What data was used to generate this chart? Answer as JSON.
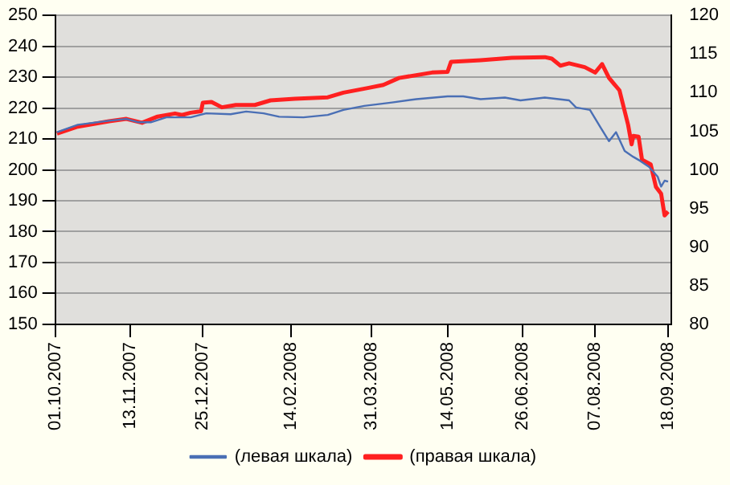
{
  "chart_data": {
    "type": "line",
    "legend": "bottom",
    "grid": "y",
    "marker": "none",
    "line_style": "solid",
    "xlim": [
      "2007-10-01",
      "2008-09-20"
    ],
    "xticks": [
      {
        "value": "2007-10-01",
        "label": "01.10.2007"
      },
      {
        "value": "2007-11-13",
        "label": "13.11.2007"
      },
      {
        "value": "2007-12-25",
        "label": "25.12.2007"
      },
      {
        "value": "2008-02-14",
        "label": "14.02.2008"
      },
      {
        "value": "2008-03-31",
        "label": "31.03.2008"
      },
      {
        "value": "2008-05-14",
        "label": "14.05.2008"
      },
      {
        "value": "2008-06-26",
        "label": "26.06.2008"
      },
      {
        "value": "2008-08-07",
        "label": "07.08.2008"
      },
      {
        "value": "2008-09-18",
        "label": "18.09.2008"
      }
    ],
    "ylim": [
      150,
      250
    ],
    "yticks": [
      150,
      160,
      170,
      180,
      190,
      200,
      210,
      220,
      230,
      240,
      250
    ],
    "y2lim": [
      80,
      120
    ],
    "y2ticks": [
      80,
      85,
      90,
      95,
      100,
      105,
      110,
      115,
      120
    ],
    "series": [
      {
        "name": "(левая шкала)",
        "color": "#4a6fb5",
        "x": [
          "2007-10-02",
          "2007-10-14",
          "2007-11-01",
          "2007-11-11",
          "2007-11-18",
          "2007-11-25",
          "2007-12-04",
          "2007-12-18",
          "2007-12-27",
          "2008-01-10",
          "2008-01-19",
          "2008-01-29",
          "2008-02-07",
          "2008-02-21",
          "2008-03-06",
          "2008-03-15",
          "2008-03-27",
          "2008-04-12",
          "2008-04-26",
          "2008-05-14",
          "2008-05-23",
          "2008-06-02",
          "2008-06-16",
          "2008-06-25",
          "2008-07-09",
          "2008-07-23",
          "2008-07-27",
          "2008-08-04",
          "2008-08-10",
          "2008-08-15",
          "2008-08-19",
          "2008-08-24",
          "2008-08-29",
          "2008-09-02",
          "2008-09-07",
          "2008-09-12",
          "2008-09-14",
          "2008-09-16",
          "2008-09-18"
        ],
        "values": [
          212.2,
          214.6,
          215.9,
          216.5,
          215.4,
          215.4,
          217,
          217,
          218.3,
          218,
          218.9,
          218.3,
          217.2,
          217,
          217.8,
          219.4,
          220.7,
          221.8,
          222.9,
          223.8,
          223.8,
          222.9,
          223.4,
          222.5,
          223.4,
          222.5,
          220.2,
          219.4,
          213.8,
          209.3,
          212.2,
          206.1,
          204.2,
          202.9,
          201,
          197.8,
          194.6,
          196.5,
          196.2
        ]
      },
      {
        "name": "(правая шкала)",
        "color": "#ff2020",
        "axis": "y2",
        "x": [
          "2007-10-02",
          "2007-10-14",
          "2007-11-01",
          "2007-11-11",
          "2007-11-20",
          "2007-11-29",
          "2007-12-09",
          "2007-12-13",
          "2007-12-18",
          "2007-12-24",
          "2007-12-25",
          "2007-12-30",
          "2008-01-05",
          "2008-01-13",
          "2008-01-24",
          "2008-02-02",
          "2008-02-16",
          "2008-03-06",
          "2008-03-15",
          "2008-03-29",
          "2008-04-07",
          "2008-04-16",
          "2008-05-05",
          "2008-05-14",
          "2008-05-16",
          "2008-06-02",
          "2008-06-20",
          "2008-07-09",
          "2008-07-13",
          "2008-07-18",
          "2008-07-23",
          "2008-08-01",
          "2008-08-07",
          "2008-08-11",
          "2008-08-15",
          "2008-08-21",
          "2008-08-26",
          "2008-08-28",
          "2008-08-29",
          "2008-09-01",
          "2008-09-03",
          "2008-09-08",
          "2008-09-11",
          "2008-09-14",
          "2008-09-16",
          "2008-09-18"
        ],
        "values": [
          104.7,
          105.6,
          106.3,
          106.6,
          106.1,
          106.9,
          107.3,
          107.1,
          107.4,
          107.6,
          108.7,
          108.8,
          108.1,
          108.4,
          108.4,
          109,
          109.2,
          109.4,
          110,
          110.6,
          111,
          111.9,
          112.6,
          112.7,
          114,
          114.2,
          114.5,
          114.6,
          114.4,
          113.5,
          113.8,
          113.3,
          112.6,
          113.7,
          111.9,
          110.3,
          105.8,
          103.3,
          104.4,
          104.3,
          101.3,
          100.7,
          97.8,
          96.9,
          94.1,
          94.6
        ]
      }
    ]
  }
}
